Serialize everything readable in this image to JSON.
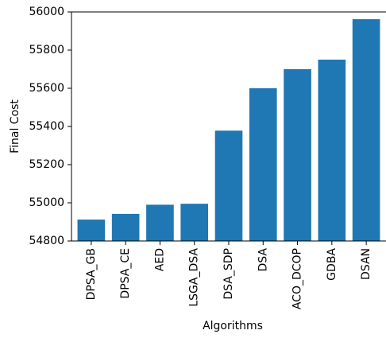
{
  "chart_data": {
    "type": "bar",
    "title": "",
    "xlabel": "Algorithms",
    "ylabel": "Final Cost",
    "categories": [
      "DPSA_GB",
      "DPSA_CE",
      "AED",
      "LSGA_DSA",
      "DSA_SDP",
      "DSA",
      "ACO_DCOP",
      "GDBA",
      "DSAN"
    ],
    "values": [
      54912,
      54942,
      54990,
      54995,
      55378,
      55600,
      55700,
      55750,
      55962
    ],
    "ylim": [
      54800,
      56000
    ],
    "yticks": [
      54800,
      55000,
      55200,
      55400,
      55600,
      55800,
      56000
    ],
    "ytick_labels": [
      "54800",
      "55000",
      "55200",
      "55400",
      "55600",
      "55800",
      "56000"
    ],
    "bar_color": "#1f77b4",
    "grid": false,
    "legend": false
  }
}
